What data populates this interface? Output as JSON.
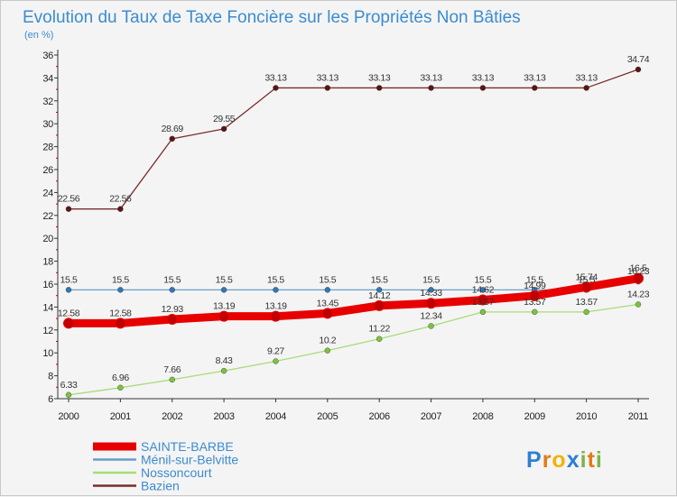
{
  "chart_data": {
    "type": "line",
    "title": "Evolution du Taux de Taxe Foncière sur les Propriétés Non Bâties",
    "subtitle": "(en %)",
    "x": [
      "2000",
      "2001",
      "2002",
      "2003",
      "2004",
      "2005",
      "2006",
      "2007",
      "2008",
      "2009",
      "2010",
      "2011"
    ],
    "ylim": [
      6,
      36
    ],
    "yticks": [
      "6",
      "8",
      "10",
      "12",
      "14",
      "16",
      "18",
      "20",
      "22",
      "24",
      "26",
      "28",
      "30",
      "32",
      "34",
      "36"
    ],
    "grid": false,
    "legend_position": "bottom-left",
    "series": [
      {
        "name": "Bazien",
        "color": "#7b2d2d",
        "marker": "#5a1515",
        "values": [
          22.56,
          22.56,
          28.69,
          29.55,
          33.13,
          33.13,
          33.13,
          33.13,
          33.13,
          33.13,
          33.13,
          34.74
        ],
        "labels": [
          "22.56",
          "22.56",
          "28.69",
          "29.55",
          "33.13",
          "33.13",
          "33.13",
          "33.13",
          "33.13",
          "33.13",
          "33.13",
          "34.74"
        ]
      },
      {
        "name": "Ménil-sur-Belvitte",
        "color": "#6a9ec8",
        "marker": "#2f78b8",
        "values": [
          15.5,
          15.5,
          15.5,
          15.5,
          15.5,
          15.5,
          15.5,
          15.5,
          15.5,
          15.5,
          15.5,
          16.23
        ],
        "labels": [
          "15.5",
          "15.5",
          "15.5",
          "15.5",
          "15.5",
          "15.5",
          "15.5",
          "15.5",
          "15.5",
          "15.5",
          "15.5",
          "16.23"
        ]
      },
      {
        "name": "Nossoncourt",
        "color": "#a8dc78",
        "marker": "#7cc43c",
        "values": [
          6.33,
          6.96,
          7.66,
          8.43,
          9.27,
          10.2,
          11.22,
          12.34,
          13.57,
          13.57,
          13.57,
          14.23
        ],
        "labels": [
          "6.33",
          "6.96",
          "7.66",
          "8.43",
          "9.27",
          "10.2",
          "11.22",
          "12.34",
          "13.57",
          "13.57",
          "13.57",
          "14.23"
        ]
      },
      {
        "name": "SAINTE-BARBE",
        "color": "#e80000",
        "marker": "#c00000",
        "values": [
          12.58,
          12.58,
          12.93,
          13.19,
          13.19,
          13.45,
          14.12,
          14.33,
          14.62,
          14.99,
          15.74,
          16.5
        ],
        "labels": [
          "12.58",
          "12.58",
          "12.93",
          "13.19",
          "13.19",
          "13.45",
          "14.12",
          "14.33",
          "14.62",
          "14.99",
          "15.74",
          "16.5"
        ]
      }
    ],
    "legend_order": [
      "SAINTE-BARBE",
      "Ménil-sur-Belvitte",
      "Nossoncourt",
      "Bazien"
    ]
  },
  "brand": {
    "letters": [
      "P",
      "r",
      "o",
      "x",
      "i",
      "t",
      "i"
    ],
    "colors": [
      "#2f7fd0",
      "#e07b1a",
      "#f0b400",
      "#2f7fd0",
      "#7ab648",
      "#e07b1a",
      "#7ab648"
    ]
  }
}
